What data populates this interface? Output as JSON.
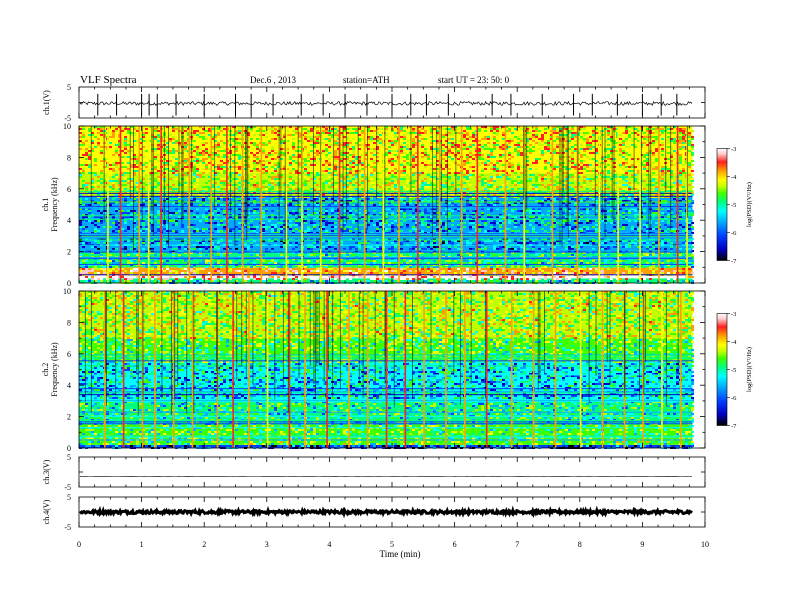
{
  "header": {
    "title": "VLF  Spectra",
    "date": "Dec.6  , 2013",
    "station": "station=ATH",
    "start": "start  UT  =    23: 50: 0"
  },
  "colors": {
    "frame": "#000000",
    "colormap": [
      "#000000",
      "#0000c0",
      "#0040ff",
      "#00a8ff",
      "#00ffff",
      "#00ff80",
      "#40ff00",
      "#c0ff00",
      "#ffff00",
      "#ffa000",
      "#ff2020",
      "#ffc8c8",
      "#ffffff"
    ]
  },
  "chart_data": [
    {
      "type": "line",
      "panel": "ch1-waveform",
      "ylabel": "ch.1(V)",
      "ylim": [
        -5,
        5
      ],
      "yticks": [
        "5",
        "-5"
      ],
      "xlim": [
        0,
        10
      ],
      "x_extent": 9.8,
      "baseline": -0.3,
      "noise_amplitude": 0.6,
      "spike_times": [
        0.3,
        0.6,
        1.0,
        1.12,
        1.25,
        1.55,
        2.0,
        2.5,
        2.75,
        3.1,
        3.55,
        3.9,
        4.25,
        4.6,
        5.0,
        5.3,
        5.55,
        5.9,
        6.6,
        6.9,
        7.4,
        7.9,
        8.2,
        8.6,
        9.0,
        9.3,
        9.55
      ]
    },
    {
      "type": "heatmap",
      "panel": "ch1-spectrogram",
      "panel_label": "ch.1",
      "ylabel": "Frequency  (kHz)",
      "ylim": [
        0,
        10
      ],
      "yticks": [
        "0",
        "2",
        "4",
        "6",
        "8",
        "10"
      ],
      "xlim": [
        0,
        10
      ],
      "x_extent": 9.8,
      "colorbar": {
        "label": "log(PSD)(V²/Hz)",
        "range": [
          -7,
          -3
        ],
        "ticks": [
          "-3",
          "-4",
          "-5",
          "-6",
          "-7"
        ]
      },
      "band_levels_log_psd": [
        {
          "f": [
            0.0,
            0.3
          ],
          "level": -5.5
        },
        {
          "f": [
            0.3,
            0.5
          ],
          "level": -3.1
        },
        {
          "f": [
            0.5,
            0.7
          ],
          "level": -4.0
        },
        {
          "f": [
            0.7,
            1.0
          ],
          "level": -3.9
        },
        {
          "f": [
            1.0,
            2.0
          ],
          "level": -5.3
        },
        {
          "f": [
            2.0,
            3.2
          ],
          "level": -6.0
        },
        {
          "f": [
            3.2,
            5.5
          ],
          "level": -5.9
        },
        {
          "f": [
            5.5,
            7.0
          ],
          "level": -4.7
        },
        {
          "f": [
            7.0,
            10.0
          ],
          "level": -4.4
        }
      ],
      "impulse_times": [
        0.45,
        0.65,
        0.95,
        1.1,
        1.3,
        1.75,
        2.1,
        2.35,
        2.6,
        2.9,
        3.3,
        3.55,
        3.85,
        4.15,
        4.55,
        4.85,
        5.1,
        5.4,
        5.75,
        6.1,
        6.35,
        6.8,
        7.1,
        7.55,
        7.95,
        8.3,
        8.6,
        8.95,
        9.25,
        9.55,
        9.7
      ]
    },
    {
      "type": "heatmap",
      "panel": "ch2-spectrogram",
      "panel_label": "ch.2",
      "ylabel": "Frequency  (kHz)",
      "ylim": [
        0,
        10
      ],
      "yticks": [
        "0",
        "2",
        "4",
        "6",
        "8",
        "10"
      ],
      "xlim": [
        0,
        10
      ],
      "x_extent": 9.8,
      "colorbar": {
        "label": "log(PSD)(V²/Hz)",
        "range": [
          -7,
          -3
        ],
        "ticks": [
          "-3",
          "-4",
          "-5",
          "-6",
          "-7"
        ]
      },
      "band_levels_log_psd": [
        {
          "f": [
            0.0,
            0.2
          ],
          "level": -6.5
        },
        {
          "f": [
            0.2,
            0.5
          ],
          "level": -5.0
        },
        {
          "f": [
            0.5,
            1.5
          ],
          "level": -5.1
        },
        {
          "f": [
            1.5,
            3.0
          ],
          "level": -5.4
        },
        {
          "f": [
            3.0,
            5.5
          ],
          "level": -5.8
        },
        {
          "f": [
            5.5,
            7.0
          ],
          "level": -5.1
        },
        {
          "f": [
            7.0,
            10.0
          ],
          "level": -4.7
        }
      ],
      "impulse_times": [
        0.4,
        0.7,
        1.0,
        1.2,
        1.5,
        1.8,
        2.2,
        2.45,
        2.7,
        3.0,
        3.35,
        3.6,
        3.95,
        4.3,
        4.6,
        4.9,
        5.2,
        5.5,
        5.85,
        6.15,
        6.5,
        6.9,
        7.25,
        7.6,
        8.0,
        8.35,
        8.7,
        9.0,
        9.3,
        9.6
      ]
    },
    {
      "type": "line",
      "panel": "ch3-waveform",
      "ylabel": "ch.3(V)",
      "ylim": [
        -5,
        5
      ],
      "yticks": [
        "5",
        "-5"
      ],
      "xlim": [
        0,
        10
      ],
      "x_extent": 9.8,
      "baseline": -1.5,
      "noise_amplitude": 0.05
    },
    {
      "type": "line",
      "panel": "ch4-waveform",
      "ylabel": "ch.4(V)",
      "ylim": [
        -5,
        5
      ],
      "yticks": [
        "5",
        "-5"
      ],
      "xlim": [
        0,
        10
      ],
      "x_extent": 9.8,
      "baseline": 0.0,
      "noise_amplitude": 0.5,
      "xlabel": "Time  (min)",
      "xticks": [
        "0",
        "1",
        "2",
        "3",
        "4",
        "5",
        "6",
        "7",
        "8",
        "9",
        "10"
      ]
    }
  ]
}
